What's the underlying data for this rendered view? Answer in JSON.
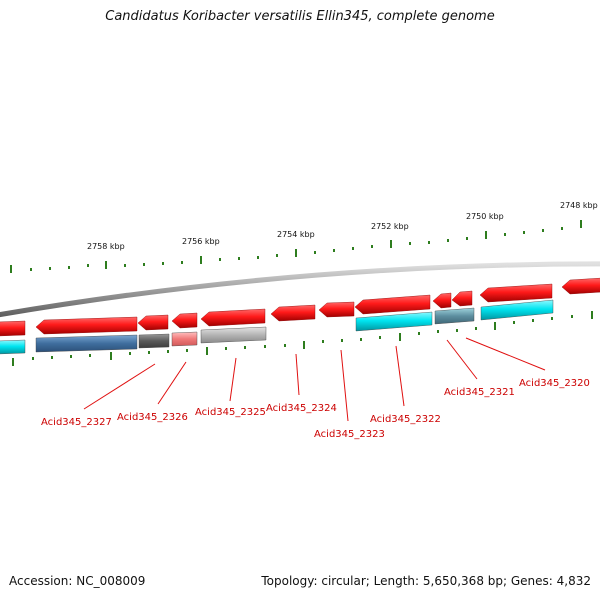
{
  "title": "Candidatus Koribacter versatilis Ellin345, complete genome",
  "footer": {
    "accession": "Accession: NC_008009",
    "topology": "Topology: circular; Length: 5,650,368 bp; Genes: 4,832"
  },
  "colors": {
    "forward_gene": "#e8141a",
    "reverse_gene": "#00d3df",
    "backbone": "#909090",
    "ticks": "#2e7d1e",
    "label": "#cc0000"
  },
  "kbp_labels": [
    "2758 kbp",
    "2756 kbp",
    "2754 kbp",
    "2752 kbp",
    "2750 kbp",
    "2748 kbp"
  ],
  "gene_labels": [
    "Acid345_2327",
    "Acid345_2326",
    "Acid345_2325",
    "Acid345_2324",
    "Acid345_2323",
    "Acid345_2322",
    "Acid345_2321",
    "Acid345_2320"
  ]
}
